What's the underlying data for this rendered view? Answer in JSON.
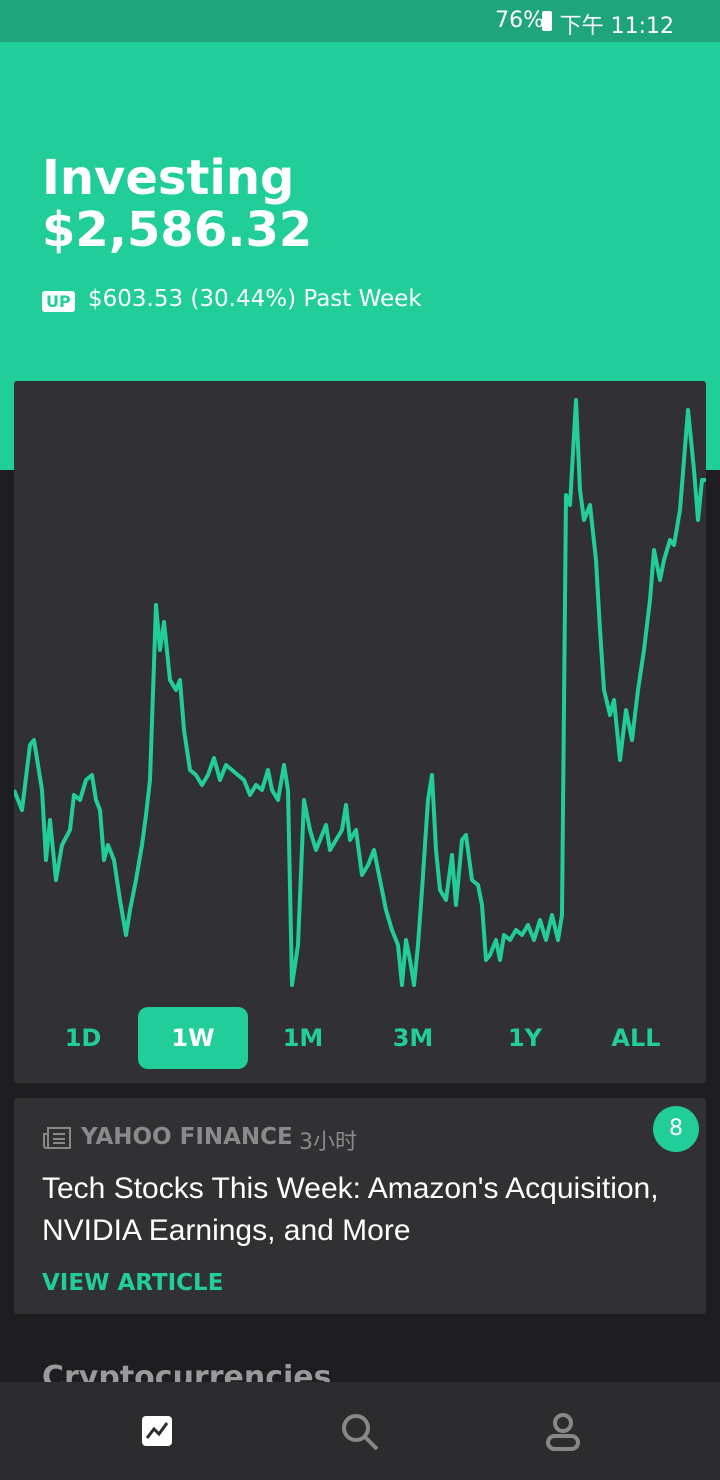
{
  "status_bar": {
    "battery": "76%",
    "time": "下午 11:12"
  },
  "header": {
    "title": "Investing",
    "value": "$2,586.32",
    "badge": "UP",
    "change": "$603.53 (30.44%) Past Week"
  },
  "range_tabs": {
    "tabs": [
      "1D",
      "1W",
      "1M",
      "3M",
      "1Y",
      "ALL"
    ],
    "selected": 1
  },
  "news": {
    "source": "YAHOO FINANCE",
    "time": "3小时",
    "count": 8,
    "headline": "Tech Stocks This Week: Amazon's Acquisition, NVIDIA Earnings, and More",
    "action": "VIEW ARTICLE"
  },
  "section": {
    "title": "Cryptocurrencies"
  }
}
